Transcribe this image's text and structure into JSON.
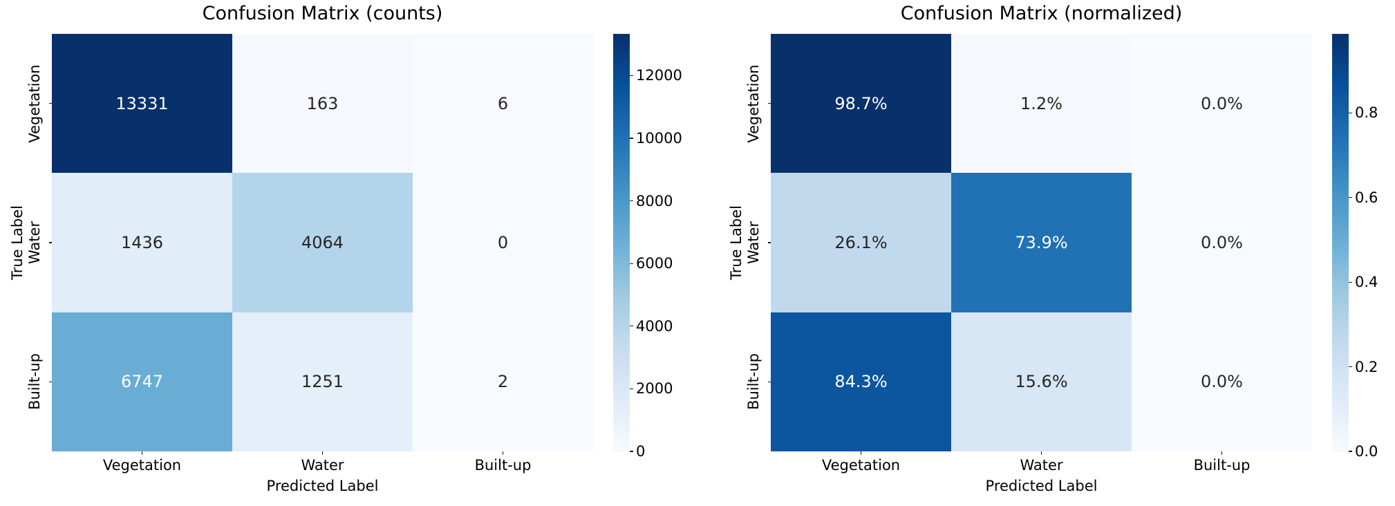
{
  "figure": {
    "background": "#ffffff",
    "annotation_dark_color": "#262626",
    "annotation_light_color": "#ffffff",
    "tick_color": "#1a1a1a"
  },
  "colormap_stops": [
    "#f7fbff",
    "#deebf7",
    "#c6dbef",
    "#9ecae1",
    "#6baed6",
    "#4292c6",
    "#2171b5",
    "#08519c",
    "#08306b"
  ],
  "chart_data": [
    {
      "type": "heatmap",
      "title": "Confusion Matrix (counts)",
      "xlabel": "Predicted Label",
      "ylabel": "True Label",
      "x_categories": [
        "Vegetation",
        "Water",
        "Built-up"
      ],
      "y_categories": [
        "Vegetation",
        "Water",
        "Built-up"
      ],
      "values": [
        [
          13331,
          163,
          6
        ],
        [
          1436,
          4064,
          0
        ],
        [
          6747,
          1251,
          2
        ]
      ],
      "annotations": [
        [
          "13331",
          "163",
          "6"
        ],
        [
          "1436",
          "4064",
          "0"
        ],
        [
          "6747",
          "1251",
          "2"
        ]
      ],
      "vmin": 0,
      "vmax": 13331,
      "colormap": "Blues",
      "colorbar_ticks": [
        0,
        2000,
        4000,
        6000,
        8000,
        10000,
        12000
      ],
      "colorbar_tick_labels": [
        "0",
        "2000",
        "4000",
        "6000",
        "8000",
        "10000",
        "12000"
      ],
      "grid": false,
      "legend": "colorbar-right"
    },
    {
      "type": "heatmap",
      "title": "Confusion Matrix (normalized)",
      "xlabel": "Predicted Label",
      "ylabel": "True Label",
      "x_categories": [
        "Vegetation",
        "Water",
        "Built-up"
      ],
      "y_categories": [
        "Vegetation",
        "Water",
        "Built-up"
      ],
      "values": [
        [
          0.987,
          0.012,
          0.0
        ],
        [
          0.261,
          0.739,
          0.0
        ],
        [
          0.843,
          0.156,
          0.0
        ]
      ],
      "annotations": [
        [
          "98.7%",
          "1.2%",
          "0.0%"
        ],
        [
          "26.1%",
          "73.9%",
          "0.0%"
        ],
        [
          "84.3%",
          "15.6%",
          "0.0%"
        ]
      ],
      "vmin": 0.0,
      "vmax": 0.987,
      "colormap": "Blues",
      "colorbar_ticks": [
        0.0,
        0.2,
        0.4,
        0.6,
        0.8
      ],
      "colorbar_tick_labels": [
        "0.0",
        "0.2",
        "0.4",
        "0.6",
        "0.8"
      ],
      "grid": false,
      "legend": "colorbar-right"
    }
  ]
}
